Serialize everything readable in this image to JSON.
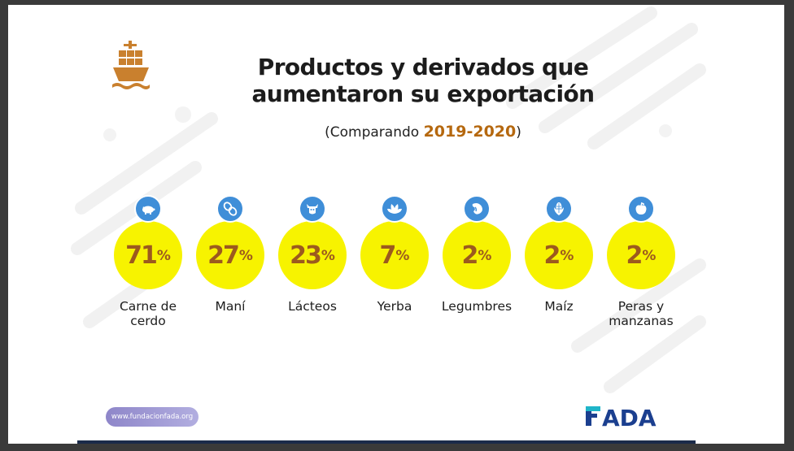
{
  "slide": {
    "title_line1": "Productos y derivados que",
    "title_line2": "aumentaron su exportación",
    "subtitle_prefix": "(Comparando ",
    "subtitle_years": "2019-2020",
    "subtitle_suffix": ")",
    "url": "www.fundacionfada.org",
    "logo_text": "FADA",
    "ship_icon": "cargo-ship-icon"
  },
  "colors": {
    "disc": "#f7f300",
    "value_text": "#9c5a1e",
    "badge": "#3f8ed8",
    "year_accent": "#b5680f",
    "logo_blue": "#1b3f8f",
    "logo_teal": "#1fb5c9"
  },
  "chart_data": {
    "type": "table",
    "title": "Productos y derivados que aumentaron su exportación",
    "subtitle": "(Comparando 2019-2020)",
    "unit": "%",
    "categories": [
      "Carne de cerdo",
      "Maní",
      "Lácteos",
      "Yerba",
      "Legumbres",
      "Maíz",
      "Peras y manzanas"
    ],
    "values": [
      71,
      27,
      23,
      7,
      2,
      2,
      2
    ],
    "items": [
      {
        "label_lines": [
          "Carne de",
          "cerdo"
        ],
        "value": "71",
        "sign": "%",
        "icon": "pig-icon"
      },
      {
        "label_lines": [
          "Maní"
        ],
        "value": "27",
        "sign": "%",
        "icon": "peanut-icon"
      },
      {
        "label_lines": [
          "Lácteos"
        ],
        "value": "23",
        "sign": "%",
        "icon": "cow-icon"
      },
      {
        "label_lines": [
          "Yerba"
        ],
        "value": "7",
        "sign": "%",
        "icon": "leaves-icon"
      },
      {
        "label_lines": [
          "Legumbres"
        ],
        "value": "2",
        "sign": "%",
        "icon": "bean-icon"
      },
      {
        "label_lines": [
          "Maíz"
        ],
        "value": "2",
        "sign": "%",
        "icon": "corn-icon"
      },
      {
        "label_lines": [
          "Peras y",
          "manzanas"
        ],
        "value": "2",
        "sign": "%",
        "icon": "apple-icon"
      }
    ]
  }
}
